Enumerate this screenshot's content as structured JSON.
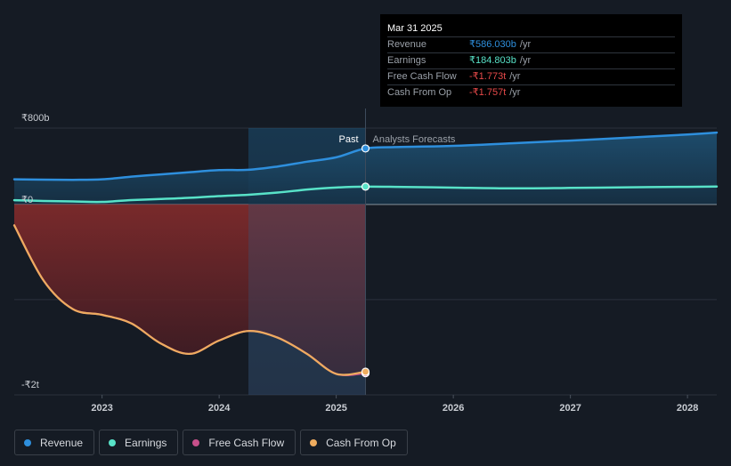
{
  "chart_data": {
    "type": "area",
    "title": "",
    "xlabel": "",
    "ylabel": "",
    "x_unit": "year",
    "xlim": [
      2022.25,
      2028.25
    ],
    "ylim": [
      -2000,
      800
    ],
    "y_tick_labels": [
      {
        "value": 800,
        "label": "₹800b"
      },
      {
        "value": 0,
        "label": "₹0"
      },
      {
        "value": -2000,
        "label": "-₹2t"
      }
    ],
    "x_ticks": [
      2023,
      2024,
      2025,
      2026,
      2027,
      2028
    ],
    "x_tick_labels": [
      "2023",
      "2024",
      "2025",
      "2026",
      "2027",
      "2028"
    ],
    "past_label": "Past",
    "forecast_label": "Analysts Forecasts",
    "divider_x": 2025.25,
    "highlight_start": 2024.25,
    "series": [
      {
        "name": "Revenue",
        "color": "#2e8fdd",
        "unit": "₹b",
        "points": [
          [
            2022.25,
            262
          ],
          [
            2022.5,
            259
          ],
          [
            2022.75,
            257
          ],
          [
            2023.0,
            262
          ],
          [
            2023.25,
            290
          ],
          [
            2023.5,
            314
          ],
          [
            2023.75,
            337
          ],
          [
            2024.0,
            359
          ],
          [
            2024.25,
            362
          ],
          [
            2024.5,
            397
          ],
          [
            2024.75,
            447
          ],
          [
            2025.0,
            493
          ],
          [
            2025.25,
            586
          ],
          [
            2025.5,
            600
          ],
          [
            2026.0,
            613
          ],
          [
            2026.5,
            640
          ],
          [
            2027.0,
            668
          ],
          [
            2027.5,
            700
          ],
          [
            2028.0,
            733
          ],
          [
            2028.25,
            752
          ]
        ]
      },
      {
        "name": "Earnings",
        "color": "#58e2c8",
        "unit": "₹b",
        "points": [
          [
            2022.25,
            43
          ],
          [
            2022.5,
            35
          ],
          [
            2022.75,
            30
          ],
          [
            2023.0,
            25
          ],
          [
            2023.25,
            44
          ],
          [
            2023.5,
            55
          ],
          [
            2023.75,
            68
          ],
          [
            2024.0,
            86
          ],
          [
            2024.25,
            100
          ],
          [
            2024.5,
            123
          ],
          [
            2024.75,
            155
          ],
          [
            2025.0,
            176
          ],
          [
            2025.25,
            185
          ],
          [
            2025.5,
            183
          ],
          [
            2026.0,
            175
          ],
          [
            2026.5,
            167
          ],
          [
            2027.0,
            172
          ],
          [
            2027.5,
            178
          ],
          [
            2028.0,
            183
          ],
          [
            2028.25,
            186
          ]
        ]
      },
      {
        "name": "Free Cash Flow",
        "color": "#c7508b",
        "unit": "₹b",
        "points": [
          [
            2022.25,
            -220
          ],
          [
            2022.5,
            -800
          ],
          [
            2022.75,
            -1100
          ],
          [
            2023.0,
            -1160
          ],
          [
            2023.25,
            -1250
          ],
          [
            2023.5,
            -1460
          ],
          [
            2023.75,
            -1570
          ],
          [
            2024.0,
            -1430
          ],
          [
            2024.25,
            -1330
          ],
          [
            2024.5,
            -1400
          ],
          [
            2024.75,
            -1570
          ],
          [
            2025.0,
            -1780
          ],
          [
            2025.25,
            -1773
          ]
        ]
      },
      {
        "name": "Cash From Op",
        "color": "#eeac5f",
        "unit": "₹b",
        "points": [
          [
            2022.25,
            -220
          ],
          [
            2022.5,
            -800
          ],
          [
            2022.75,
            -1100
          ],
          [
            2023.0,
            -1160
          ],
          [
            2023.25,
            -1250
          ],
          [
            2023.5,
            -1460
          ],
          [
            2023.75,
            -1570
          ],
          [
            2024.0,
            -1430
          ],
          [
            2024.25,
            -1330
          ],
          [
            2024.5,
            -1400
          ],
          [
            2024.75,
            -1570
          ],
          [
            2025.0,
            -1780
          ],
          [
            2025.25,
            -1757
          ]
        ]
      }
    ],
    "legend_position": "bottom-left"
  },
  "tooltip": {
    "date": "Mar 31 2025",
    "rows": [
      {
        "label": "Revenue",
        "value": "₹586.030b",
        "unit": "/yr",
        "color": "#2e8fdd"
      },
      {
        "label": "Earnings",
        "value": "₹184.803b",
        "unit": "/yr",
        "color": "#58e2c8"
      },
      {
        "label": "Free Cash Flow",
        "value": "-₹1.773t",
        "unit": "/yr",
        "color": "#e84a4a"
      },
      {
        "label": "Cash From Op",
        "value": "-₹1.757t",
        "unit": "/yr",
        "color": "#e84a4a"
      }
    ]
  },
  "legend": [
    {
      "label": "Revenue",
      "color": "#2e8fdd"
    },
    {
      "label": "Earnings",
      "color": "#58e2c8"
    },
    {
      "label": "Free Cash Flow",
      "color": "#c7508b"
    },
    {
      "label": "Cash From Op",
      "color": "#eeac5f"
    }
  ]
}
